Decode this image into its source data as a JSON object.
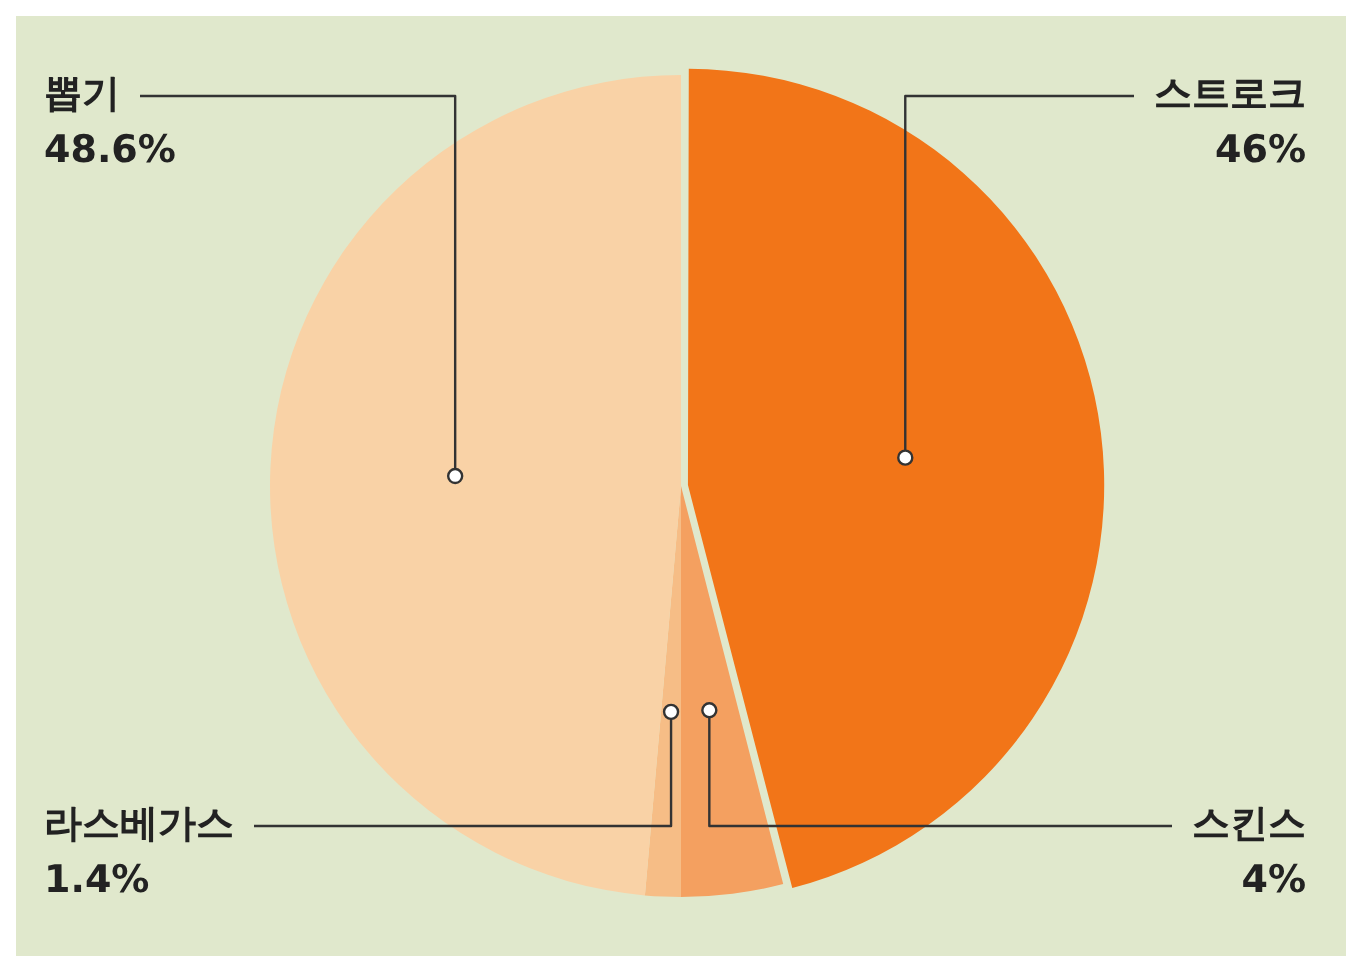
{
  "chart_data": {
    "type": "pie",
    "categories": [
      "스트로크",
      "스킨스",
      "라스베가스",
      "뽑기"
    ],
    "values": [
      46,
      4,
      1.4,
      48.6
    ],
    "colors": [
      "#f27518",
      "#f4a060",
      "#f6bd86",
      "#f9d2a6"
    ],
    "value_labels": [
      "46%",
      "4%",
      "1.4%",
      "48.6%"
    ],
    "legend": false
  }
}
